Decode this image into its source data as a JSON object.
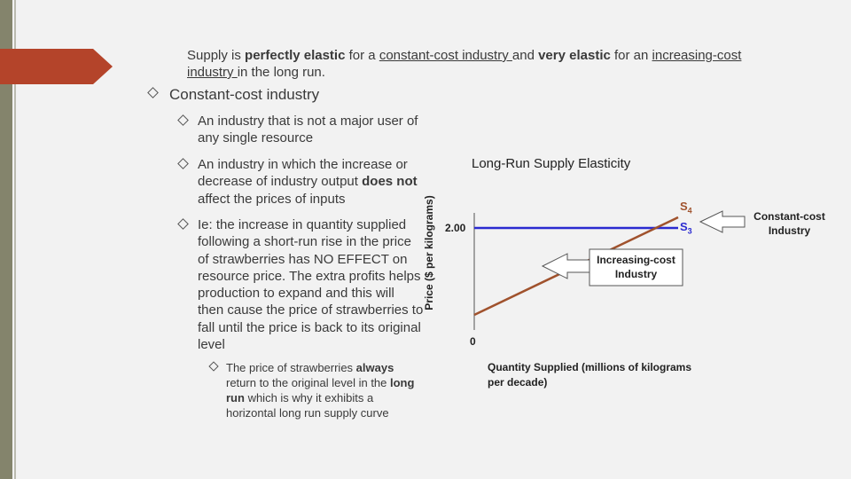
{
  "heading": {
    "runs": [
      {
        "text": "Supply is "
      },
      {
        "text": "perfectly elastic",
        "bold": true
      },
      {
        "text": " for a "
      },
      {
        "text": "constant-cost industry ",
        "underline": true
      },
      {
        "text": "and "
      },
      {
        "text": "very elastic",
        "bold": true
      },
      {
        "text": " for an "
      },
      {
        "text": "increasing-cost industry ",
        "underline": true
      },
      {
        "text": "in the long run."
      }
    ]
  },
  "bullets": [
    {
      "runs": [
        {
          "text": "Constant-cost industry"
        }
      ]
    },
    {
      "runs": [
        {
          "text": "An industry that is not a major user of any single resource"
        }
      ]
    },
    {
      "runs": [
        {
          "text": "An industry in which the increase or decrease of industry output "
        },
        {
          "text": "does not",
          "bold": true
        },
        {
          "text": " affect the prices of inputs"
        }
      ]
    },
    {
      "runs": [
        {
          "text": "Ie: the increase in quantity supplied following a short-run rise in the price of strawberries has NO EFFECT on resource price. The extra profits helps production to expand and this will then cause the price of strawberries to fall until the price is back to its original level"
        }
      ]
    },
    {
      "runs": [
        {
          "text": "The price of strawberries "
        },
        {
          "text": "always",
          "bold": true
        },
        {
          "text": " return to the original level in the "
        },
        {
          "text": "long run",
          "bold": true
        },
        {
          "text": "  which is why it exhibits a horizontal long run supply curve"
        }
      ]
    }
  ],
  "diagram": {
    "title": "Long-Run Supply Elasticity",
    "y_label": "Price ($ per kilograms)",
    "x_label": "Quantity Supplied (millions of kilograms per decade)",
    "price_tick": "2.00",
    "origin": "0",
    "curves": [
      {
        "symbol": "S",
        "sub": "4"
      },
      {
        "symbol": "S",
        "sub": "3"
      }
    ],
    "callouts": [
      "Increasing-cost Industry",
      "Constant-cost Industry"
    ]
  }
}
